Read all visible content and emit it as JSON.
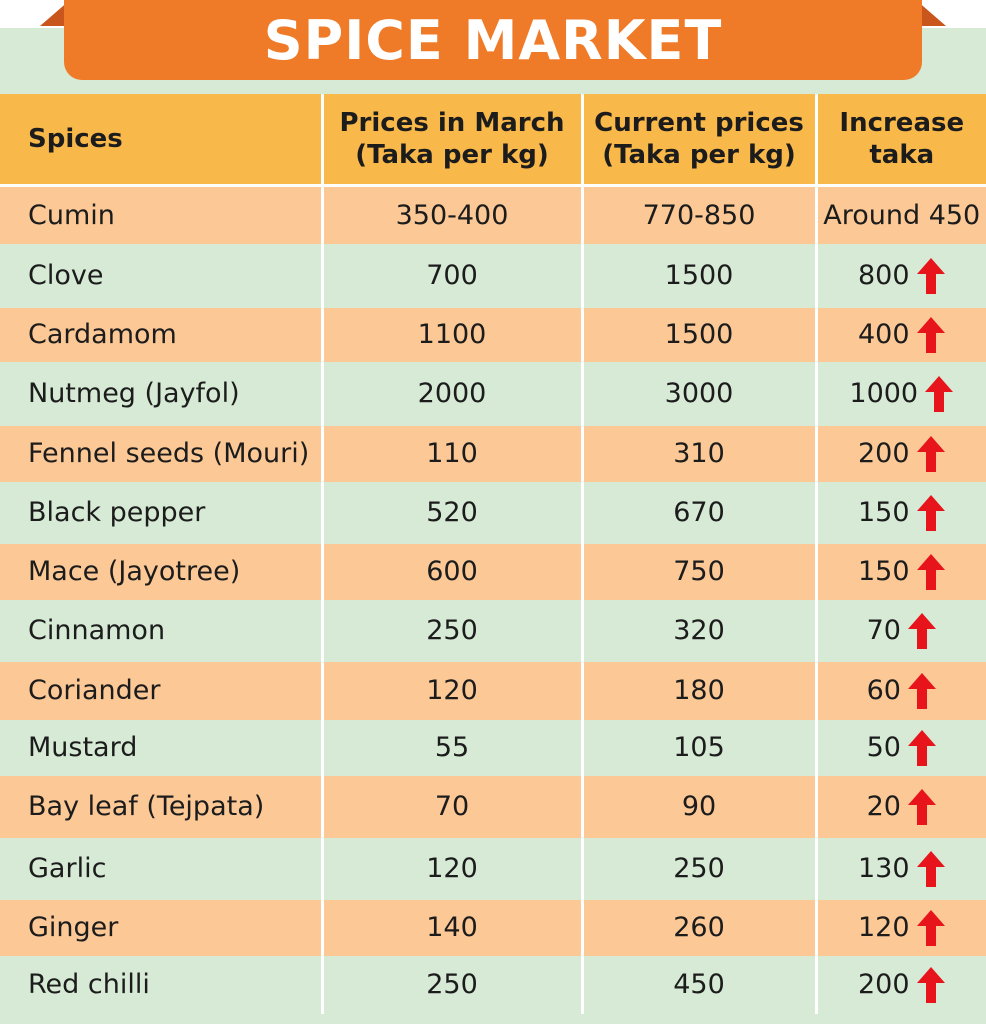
{
  "title": "SPICE MARKET",
  "colors": {
    "banner": "#ef7a27",
    "header": "#f8b84a",
    "row_orange": "#fbc896",
    "row_green": "#d6ead6",
    "arrow": "#e8141c"
  },
  "chart_data": {
    "type": "table",
    "title": "SPICE MARKET",
    "columns": [
      "Spices",
      "Prices in March (Taka per kg)",
      "Current prices (Taka per kg)",
      "Increase taka"
    ],
    "rows": [
      {
        "spice": "Cumin",
        "march": "350-400",
        "current": "770-850",
        "increase": "Around 450",
        "arrow": false
      },
      {
        "spice": "Clove",
        "march": "700",
        "current": "1500",
        "increase": "800",
        "arrow": true
      },
      {
        "spice": "Cardamom",
        "march": "1100",
        "current": "1500",
        "increase": "400",
        "arrow": true
      },
      {
        "spice": "Nutmeg (Jayfol)",
        "march": "2000",
        "current": "3000",
        "increase": "1000",
        "arrow": true
      },
      {
        "spice": "Fennel seeds (Mouri)",
        "march": "110",
        "current": "310",
        "increase": "200",
        "arrow": true
      },
      {
        "spice": "Black pepper",
        "march": "520",
        "current": "670",
        "increase": "150",
        "arrow": true
      },
      {
        "spice": "Mace (Jayotree)",
        "march": "600",
        "current": "750",
        "increase": "150",
        "arrow": true
      },
      {
        "spice": "Cinnamon",
        "march": "250",
        "current": "320",
        "increase": "70",
        "arrow": true
      },
      {
        "spice": "Coriander",
        "march": "120",
        "current": "180",
        "increase": "60",
        "arrow": true
      },
      {
        "spice": "Mustard",
        "march": "55",
        "current": "105",
        "increase": "50",
        "arrow": true
      },
      {
        "spice": "Bay leaf (Tejpata)",
        "march": "70",
        "current": "90",
        "increase": "20",
        "arrow": true
      },
      {
        "spice": "Garlic",
        "march": "120",
        "current": "250",
        "increase": "130",
        "arrow": true
      },
      {
        "spice": "Ginger",
        "march": "140",
        "current": "260",
        "increase": "120",
        "arrow": true
      },
      {
        "spice": "Red chilli",
        "march": "250",
        "current": "450",
        "increase": "200",
        "arrow": true
      }
    ]
  }
}
